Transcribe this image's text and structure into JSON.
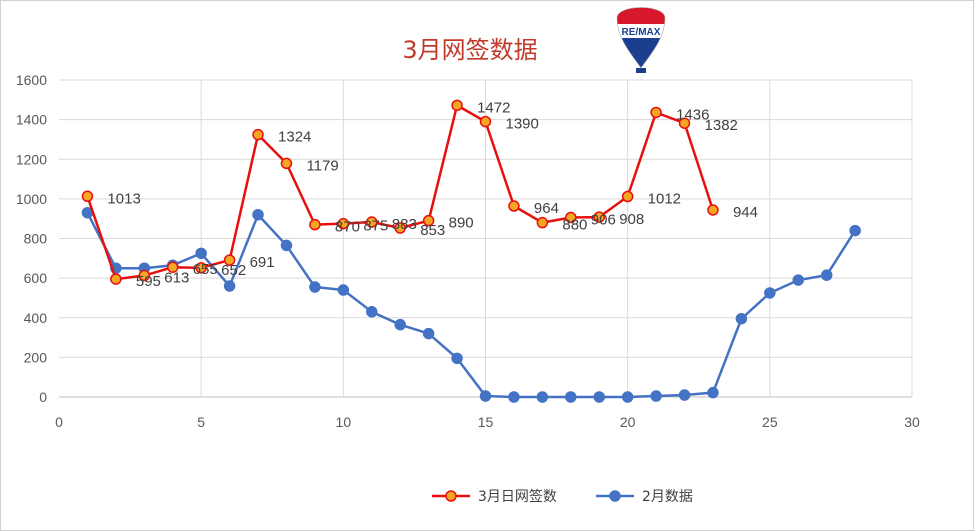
{
  "chart_data": {
    "type": "line",
    "title": "3月网签数据",
    "xlim": [
      0,
      30
    ],
    "ylim": [
      0,
      1600
    ],
    "x_ticks": [
      0,
      5,
      10,
      15,
      20,
      25,
      30
    ],
    "y_ticks": [
      0,
      200,
      400,
      600,
      800,
      1000,
      1200,
      1400,
      1600
    ],
    "grid": true,
    "legend_position": "bottom",
    "series": [
      {
        "name": "3月日网签数",
        "color": "#e8100f",
        "marker_fill": "#f5a623",
        "x": [
          1,
          2,
          3,
          4,
          5,
          6,
          7,
          8,
          9,
          10,
          11,
          12,
          13,
          14,
          15,
          16,
          17,
          18,
          19,
          20,
          21,
          22,
          23
        ],
        "values": [
          1013,
          595,
          613,
          655,
          652,
          691,
          1324,
          1179,
          870,
          875,
          883,
          853,
          890,
          1472,
          1390,
          964,
          880,
          906,
          908,
          1012,
          1436,
          1382,
          944
        ],
        "data_labels": [
          "1013",
          "595",
          "613",
          "655",
          "652",
          "691",
          "1324",
          "1179",
          "870",
          "875",
          "883",
          "853",
          "890",
          "1472",
          "1390",
          "964",
          "880",
          "906",
          "908",
          "1012",
          "1436",
          "1382",
          "944"
        ]
      },
      {
        "name": "2月数据",
        "color": "#4472c4",
        "marker_fill": "#4472c4",
        "x": [
          1,
          2,
          3,
          4,
          5,
          6,
          7,
          8,
          9,
          10,
          11,
          12,
          13,
          14,
          15,
          16,
          17,
          18,
          19,
          20,
          21,
          22,
          23,
          24,
          25,
          26,
          27,
          28
        ],
        "values": [
          930,
          650,
          650,
          665,
          725,
          560,
          920,
          765,
          555,
          540,
          430,
          365,
          320,
          195,
          5,
          0,
          0,
          0,
          0,
          0,
          5,
          10,
          22,
          395,
          525,
          590,
          615,
          840
        ]
      }
    ]
  },
  "logo": {
    "name": "remax-balloon-logo",
    "text": "RE/MAX"
  }
}
